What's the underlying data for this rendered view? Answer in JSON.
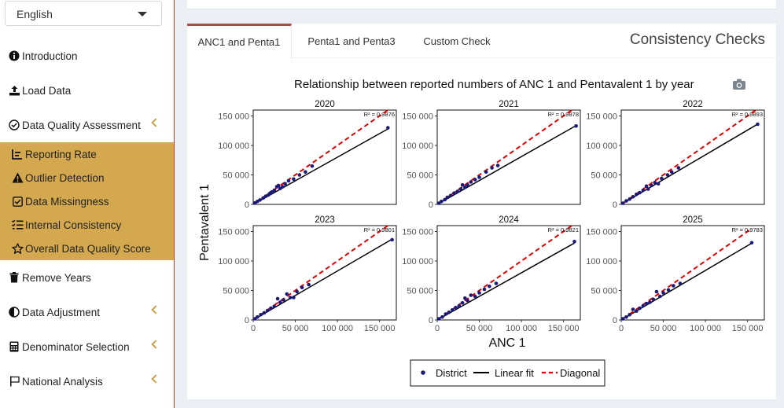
{
  "sidebar": {
    "language": "English",
    "items": [
      {
        "label": "Introduction",
        "icon": "info-circle-icon"
      },
      {
        "label": "Load Data",
        "icon": "upload-icon"
      },
      {
        "label": "Data Quality Assessment",
        "icon": "check-circle-icon",
        "expanded": true
      },
      {
        "label": "Remove Years",
        "icon": "trash-icon"
      },
      {
        "label": "Data Adjustment",
        "icon": "half-circle-icon"
      },
      {
        "label": "Denominator Selection",
        "icon": "calculator-icon"
      },
      {
        "label": "National Analysis",
        "icon": "flag-icon"
      }
    ],
    "sub_items": [
      {
        "label": "Reporting Rate",
        "icon": "chart-line-icon"
      },
      {
        "label": "Outlier Detection",
        "icon": "warning-icon"
      },
      {
        "label": "Data Missingness",
        "icon": "square-check-icon"
      },
      {
        "label": "Internal Consistency",
        "icon": "list-check-icon"
      },
      {
        "label": "Overall Data Quality Score",
        "icon": "star-icon"
      }
    ],
    "accent_color": "#d4a84e"
  },
  "main": {
    "title": "Consistency Checks",
    "tabs": [
      {
        "label": "ANC1 and Penta1",
        "active": true
      },
      {
        "label": "Penta1 and Penta3",
        "active": false
      },
      {
        "label": "Custom Check",
        "active": false
      }
    ]
  },
  "chart_data": {
    "type": "scatter",
    "title": "Relationship between reported numbers of ANC 1 and Pentavalent 1 by year",
    "xlabel": "ANC 1",
    "ylabel": "Pentavalent 1",
    "x_ticks": [
      "0",
      "50 000",
      "100 000",
      "150 000"
    ],
    "y_ticks": [
      "0",
      "50 000",
      "100 000",
      "150 000"
    ],
    "xlim": [
      0,
      170000
    ],
    "ylim": [
      0,
      160000
    ],
    "legend": {
      "placement": "bottom",
      "entries": [
        "District",
        "Linear fit",
        "Diagonal"
      ]
    },
    "colors": {
      "points": "#1a1a7a",
      "fit": "#000000",
      "diagonal": "#e00000"
    },
    "facets": [
      {
        "year": "2020",
        "r2": "R² = 0.9876",
        "fit_slope": 0.8,
        "points": [
          [
            2000,
            2500
          ],
          [
            5000,
            5000
          ],
          [
            8000,
            7500
          ],
          [
            12000,
            11000
          ],
          [
            15000,
            14000
          ],
          [
            18000,
            16000
          ],
          [
            20000,
            19000
          ],
          [
            22000,
            21000
          ],
          [
            25000,
            24000
          ],
          [
            28000,
            30000
          ],
          [
            30000,
            32000
          ],
          [
            32000,
            27000
          ],
          [
            35000,
            30000
          ],
          [
            38000,
            35000
          ],
          [
            42000,
            40000
          ],
          [
            48000,
            43000
          ],
          [
            55000,
            50000
          ],
          [
            62000,
            55000
          ],
          [
            70000,
            65000
          ],
          [
            160000,
            130000
          ]
        ]
      },
      {
        "year": "2021",
        "r2": "R² = 0.9878",
        "fit_slope": 0.81,
        "points": [
          [
            2000,
            2000
          ],
          [
            5000,
            5000
          ],
          [
            9000,
            8000
          ],
          [
            12000,
            12000
          ],
          [
            16000,
            15000
          ],
          [
            20000,
            19000
          ],
          [
            24000,
            22000
          ],
          [
            28000,
            26000
          ],
          [
            30000,
            33000
          ],
          [
            33000,
            29000
          ],
          [
            36000,
            33000
          ],
          [
            40000,
            38000
          ],
          [
            45000,
            42000
          ],
          [
            50000,
            46000
          ],
          [
            58000,
            55000
          ],
          [
            65000,
            62000
          ],
          [
            72000,
            66000
          ],
          [
            165000,
            133000
          ]
        ]
      },
      {
        "year": "2022",
        "r2": "R² = 0.9893",
        "fit_slope": 0.84,
        "points": [
          [
            2000,
            2000
          ],
          [
            6000,
            6000
          ],
          [
            10000,
            9000
          ],
          [
            14000,
            13000
          ],
          [
            18000,
            17000
          ],
          [
            22000,
            20000
          ],
          [
            26000,
            24000
          ],
          [
            30000,
            31000
          ],
          [
            32000,
            26000
          ],
          [
            36000,
            32000
          ],
          [
            40000,
            37000
          ],
          [
            44000,
            35000
          ],
          [
            48000,
            44000
          ],
          [
            55000,
            50000
          ],
          [
            60000,
            55000
          ],
          [
            68000,
            62000
          ],
          [
            162000,
            136000
          ]
        ]
      },
      {
        "year": "2023",
        "r2": "R² = 0.9801",
        "fit_slope": 0.83,
        "points": [
          [
            2000,
            2000
          ],
          [
            5000,
            5000
          ],
          [
            9000,
            9000
          ],
          [
            13000,
            12000
          ],
          [
            17000,
            16000
          ],
          [
            21000,
            20000
          ],
          [
            25000,
            23000
          ],
          [
            29000,
            36000
          ],
          [
            32000,
            30000
          ],
          [
            36000,
            34000
          ],
          [
            40000,
            44000
          ],
          [
            44000,
            38000
          ],
          [
            48000,
            38000
          ],
          [
            52000,
            48000
          ],
          [
            58000,
            55000
          ],
          [
            66000,
            60000
          ],
          [
            165000,
            136000
          ]
        ]
      },
      {
        "year": "2024",
        "r2": "R² = 0.9821",
        "fit_slope": 0.8,
        "points": [
          [
            2000,
            2000
          ],
          [
            6000,
            5000
          ],
          [
            10000,
            10000
          ],
          [
            14000,
            13000
          ],
          [
            18000,
            17000
          ],
          [
            22000,
            21000
          ],
          [
            26000,
            24000
          ],
          [
            30000,
            29000
          ],
          [
            33000,
            37000
          ],
          [
            36000,
            33000
          ],
          [
            40000,
            42000
          ],
          [
            45000,
            40000
          ],
          [
            50000,
            46000
          ],
          [
            56000,
            52000
          ],
          [
            62000,
            57000
          ],
          [
            70000,
            62000
          ],
          [
            163000,
            133000
          ]
        ]
      },
      {
        "year": "2025",
        "r2": "R² = 0.9783",
        "fit_slope": 0.84,
        "points": [
          [
            2000,
            2000
          ],
          [
            6000,
            5000
          ],
          [
            10000,
            9000
          ],
          [
            14000,
            18000
          ],
          [
            18000,
            15000
          ],
          [
            22000,
            20000
          ],
          [
            26000,
            24000
          ],
          [
            30000,
            28000
          ],
          [
            34000,
            30000
          ],
          [
            38000,
            35000
          ],
          [
            42000,
            48000
          ],
          [
            46000,
            40000
          ],
          [
            50000,
            46000
          ],
          [
            56000,
            51000
          ],
          [
            62000,
            58000
          ],
          [
            70000,
            62000
          ],
          [
            155000,
            131000
          ]
        ]
      }
    ]
  }
}
